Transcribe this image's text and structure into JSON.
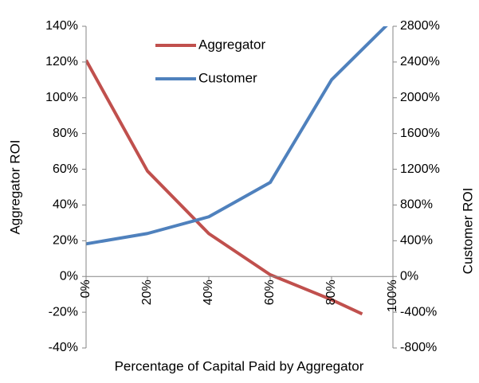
{
  "chart_data": {
    "type": "line",
    "xlabel": "Percentage of Capital Paid by Aggregator",
    "ylabel": "Aggregator ROI",
    "y2label": "Customer ROI",
    "xlim": [
      0,
      100
    ],
    "xticks": [
      {
        "value": 0,
        "label": "0%"
      },
      {
        "value": 20,
        "label": "20%"
      },
      {
        "value": 40,
        "label": "40%"
      },
      {
        "value": 60,
        "label": "60%"
      },
      {
        "value": 80,
        "label": "80%"
      },
      {
        "value": 100,
        "label": "100%"
      }
    ],
    "ylim": [
      -40,
      140
    ],
    "yticks": [
      {
        "value": -40,
        "label": "-40%"
      },
      {
        "value": -20,
        "label": "-20%"
      },
      {
        "value": 0,
        "label": "0%"
      },
      {
        "value": 20,
        "label": "20%"
      },
      {
        "value": 40,
        "label": "40%"
      },
      {
        "value": 60,
        "label": "60%"
      },
      {
        "value": 80,
        "label": "80%"
      },
      {
        "value": 100,
        "label": "100%"
      },
      {
        "value": 120,
        "label": "120%"
      },
      {
        "value": 140,
        "label": "140%"
      }
    ],
    "y2lim": [
      -800,
      2800
    ],
    "y2ticks": [
      {
        "value": -800,
        "label": "-800%"
      },
      {
        "value": -400,
        "label": "-400%"
      },
      {
        "value": 0,
        "label": "0%"
      },
      {
        "value": 400,
        "label": "400%"
      },
      {
        "value": 800,
        "label": "800%"
      },
      {
        "value": 1200,
        "label": "1200%"
      },
      {
        "value": 1600,
        "label": "1600%"
      },
      {
        "value": 2000,
        "label": "2000%"
      },
      {
        "value": 2400,
        "label": "2400%"
      },
      {
        "value": 2800,
        "label": "2800%"
      }
    ],
    "grid": false,
    "legend": "top",
    "series": [
      {
        "name": "Aggregator",
        "color": "#c0504d",
        "x": [
          0,
          20,
          40,
          60,
          80,
          90
        ],
        "values": [
          121,
          59,
          24,
          1,
          -13,
          -21
        ]
      },
      {
        "name": "Customer",
        "color": "#4f81bd",
        "axis": "y2",
        "x": [
          0,
          20,
          40,
          60,
          80,
          100
        ],
        "values": [
          365,
          481,
          668,
          1052,
          2201,
          2880
        ]
      }
    ]
  }
}
